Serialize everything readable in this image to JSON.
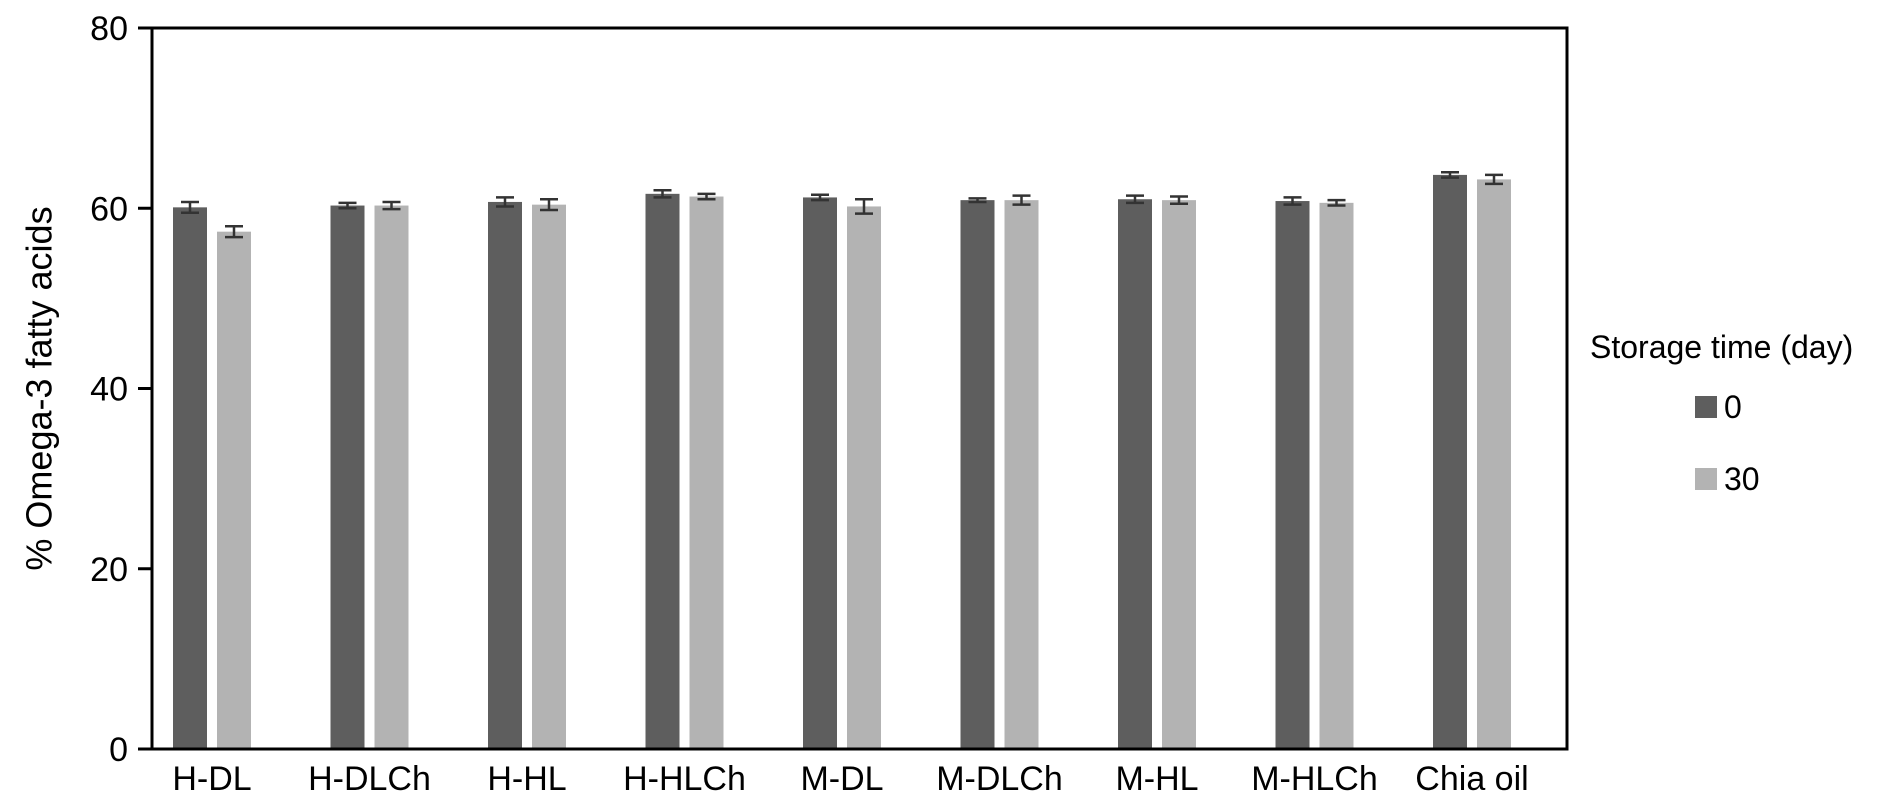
{
  "chart_data": {
    "type": "bar",
    "ylabel": "% Omega-3 fatty acids",
    "xlabel": "",
    "ylim": [
      0,
      80
    ],
    "yticks": [
      0,
      20,
      40,
      60,
      80
    ],
    "grid": false,
    "legend_placement": "right",
    "legend_title": "Storage time (day)",
    "categories": [
      "H-DL",
      "H-DLCh",
      "H-HL",
      "H-HLCh",
      "M-DL",
      "M-DLCh",
      "M-HL",
      "M-HLCh",
      "Chia oil"
    ],
    "series": [
      {
        "name": "0",
        "color": "#5e5e5e",
        "values": [
          60.1,
          60.3,
          60.7,
          61.6,
          61.2,
          60.9,
          61.0,
          60.8,
          63.7
        ],
        "errors": [
          0.6,
          0.3,
          0.5,
          0.4,
          0.3,
          0.2,
          0.4,
          0.4,
          0.3
        ]
      },
      {
        "name": "30",
        "color": "#b3b3b3",
        "values": [
          57.4,
          60.3,
          60.4,
          61.3,
          60.2,
          60.9,
          60.9,
          60.6,
          63.2
        ],
        "errors": [
          0.6,
          0.4,
          0.6,
          0.3,
          0.8,
          0.5,
          0.4,
          0.3,
          0.5
        ]
      }
    ]
  }
}
